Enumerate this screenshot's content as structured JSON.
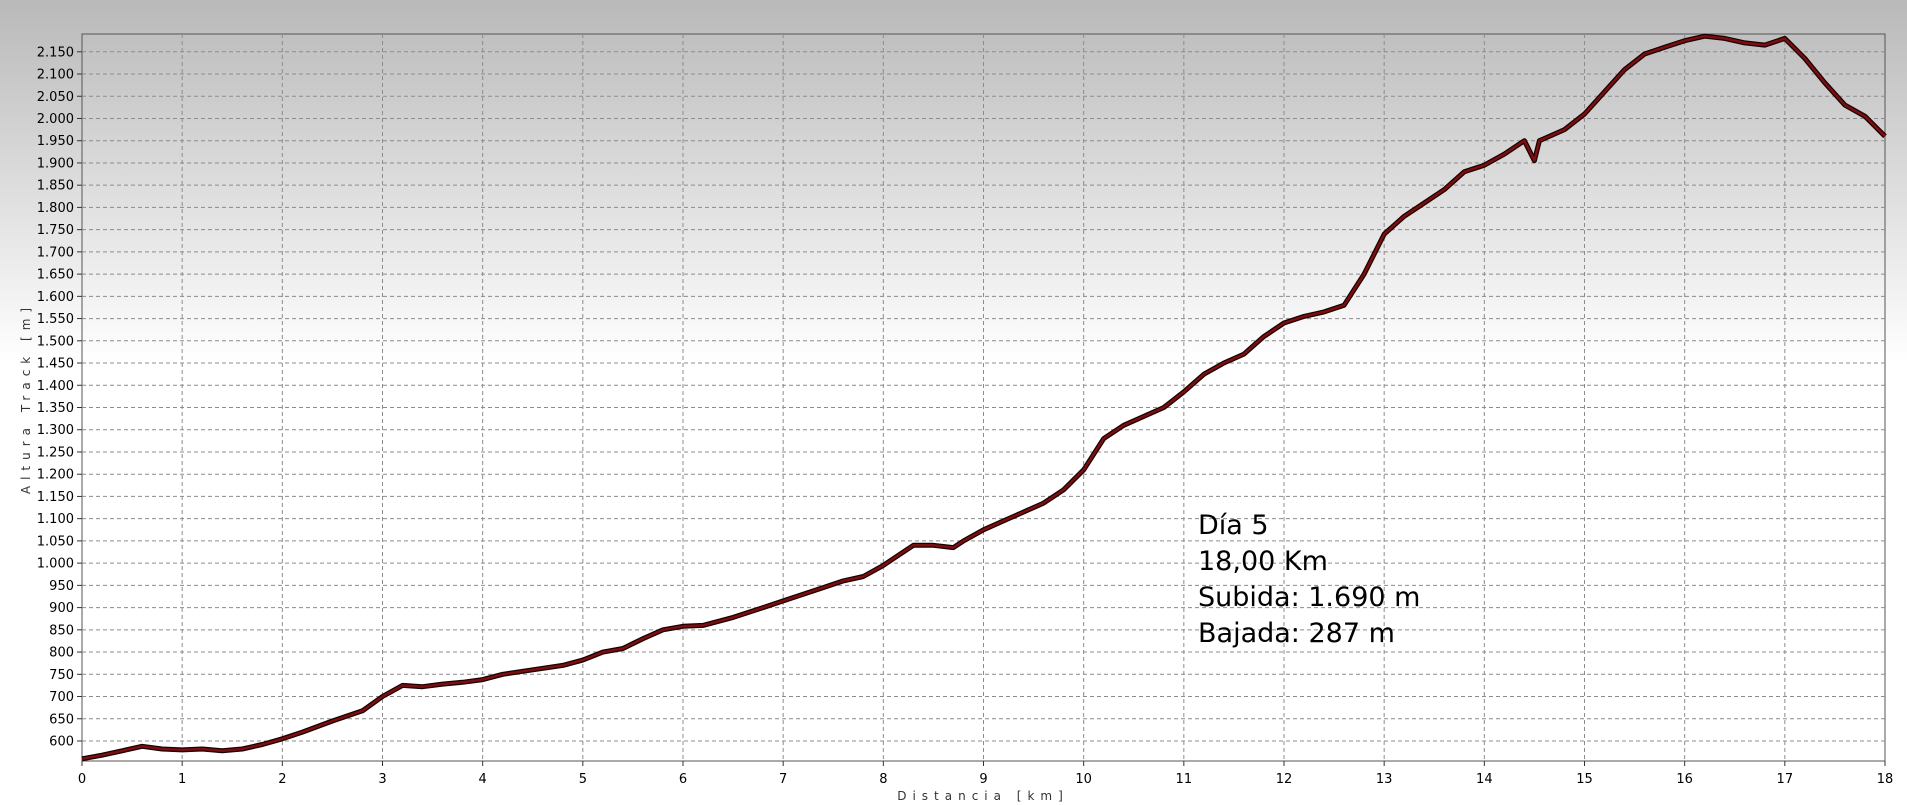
{
  "chart_data": {
    "type": "line",
    "xlabel": "Distancia [km]",
    "ylabel": "Altura Track [m]",
    "xlim": [
      0,
      18
    ],
    "ylim": [
      555,
      2190
    ],
    "grid": true,
    "x_ticks": [
      "0",
      "1",
      "2",
      "3",
      "4",
      "5",
      "6",
      "7",
      "8",
      "9",
      "10",
      "11",
      "12",
      "13",
      "14",
      "15",
      "16",
      "17",
      "18"
    ],
    "y_ticks": [
      "600",
      "650",
      "700",
      "750",
      "800",
      "850",
      "900",
      "950",
      "1.000",
      "1.050",
      "1.100",
      "1.150",
      "1.200",
      "1.250",
      "1.300",
      "1.350",
      "1.400",
      "1.450",
      "1.500",
      "1.550",
      "1.600",
      "1.650",
      "1.700",
      "1.750",
      "1.800",
      "1.850",
      "1.900",
      "1.950",
      "2.000",
      "2.050",
      "2.100",
      "2.150"
    ],
    "y_tick_values": [
      600,
      650,
      700,
      750,
      800,
      850,
      900,
      950,
      1000,
      1050,
      1100,
      1150,
      1200,
      1250,
      1300,
      1350,
      1400,
      1450,
      1500,
      1550,
      1600,
      1650,
      1700,
      1750,
      1800,
      1850,
      1900,
      1950,
      2000,
      2050,
      2100,
      2150
    ],
    "series": [
      {
        "color": "#7a0e10",
        "x": [
          0,
          0.2,
          0.4,
          0.6,
          0.8,
          1.0,
          1.2,
          1.4,
          1.6,
          1.8,
          2.0,
          2.2,
          2.5,
          2.8,
          3.0,
          3.2,
          3.4,
          3.6,
          3.8,
          4.0,
          4.2,
          4.5,
          4.8,
          5.0,
          5.2,
          5.4,
          5.6,
          5.8,
          6.0,
          6.2,
          6.5,
          6.8,
          7.0,
          7.2,
          7.4,
          7.6,
          7.8,
          8.0,
          8.1,
          8.3,
          8.5,
          8.7,
          8.8,
          9.0,
          9.2,
          9.4,
          9.6,
          9.8,
          10.0,
          10.2,
          10.4,
          10.6,
          10.8,
          11.0,
          11.2,
          11.4,
          11.6,
          11.8,
          12.0,
          12.2,
          12.4,
          12.6,
          12.8,
          13.0,
          13.2,
          13.4,
          13.6,
          13.8,
          14.0,
          14.2,
          14.4,
          14.5,
          14.55,
          14.6,
          14.8,
          15.0,
          15.2,
          15.4,
          15.6,
          15.8,
          16.0,
          16.2,
          16.4,
          16.6,
          16.8,
          17.0,
          17.2,
          17.4,
          17.6,
          17.8,
          18.0
        ],
        "y": [
          560,
          568,
          578,
          588,
          582,
          580,
          582,
          578,
          582,
          592,
          605,
          620,
          645,
          668,
          700,
          725,
          722,
          728,
          732,
          738,
          750,
          760,
          770,
          782,
          800,
          808,
          830,
          850,
          858,
          860,
          878,
          900,
          915,
          930,
          945,
          960,
          970,
          995,
          1010,
          1040,
          1040,
          1035,
          1050,
          1075,
          1095,
          1115,
          1135,
          1165,
          1210,
          1280,
          1310,
          1330,
          1350,
          1385,
          1425,
          1450,
          1470,
          1510,
          1540,
          1555,
          1565,
          1580,
          1650,
          1740,
          1780,
          1810,
          1840,
          1880,
          1895,
          1920,
          1950,
          1905,
          1950,
          1955,
          1975,
          2010,
          2060,
          2110,
          2145,
          2160,
          2175,
          2185,
          2180,
          2170,
          2165,
          2180,
          2135,
          2080,
          2030,
          2005,
          1960
        ]
      }
    ],
    "annotations": [
      "Día 5",
      "18,00 Km",
      "Subida: 1.690 m",
      "Bajada: 287 m"
    ]
  }
}
